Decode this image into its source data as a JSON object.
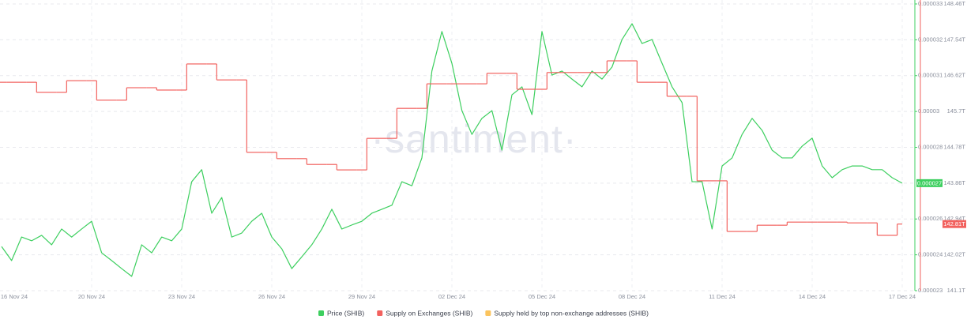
{
  "chart_data": {
    "type": "line",
    "watermark": "·santiment·",
    "categories": [
      "16 Nov 24",
      null,
      null,
      null,
      null,
      null,
      null,
      null,
      null,
      null,
      null,
      null,
      "20 Nov 24",
      null,
      null,
      null,
      null,
      null,
      null,
      null,
      null,
      "23 Nov 24",
      null,
      null,
      null,
      null,
      null,
      null,
      null,
      null,
      "26 Nov 24",
      null,
      null,
      null,
      null,
      null,
      null,
      null,
      null,
      "29 Nov 24",
      null,
      null,
      null,
      null,
      null,
      null,
      null,
      null,
      "02 Dec 24",
      null,
      null,
      null,
      null,
      null,
      null,
      null,
      null,
      "05 Dec 24",
      null,
      null,
      null,
      null,
      null,
      null,
      null,
      null,
      "08 Dec 24",
      null,
      null,
      null,
      null,
      null,
      null,
      null,
      null,
      "11 Dec 24",
      null,
      null,
      null,
      null,
      null,
      null,
      null,
      null,
      "14 Dec 24",
      null,
      null,
      null,
      null,
      null,
      null,
      null,
      null,
      "17 Dec 24"
    ],
    "series": [
      {
        "name": "Price (SHIB)",
        "color": "#3dcf5f",
        "current_label": "0.000027",
        "values": [
          null,
          null,
          null,
          2.454e-05,
          2.405e-05,
          2.487e-05,
          2.474e-05,
          2.493e-05,
          2.46e-05,
          2.515e-05,
          2.487e-05,
          2.515e-05,
          2.542e-05,
          2.432e-05,
          2.405e-05,
          2.377e-05,
          2.35e-05,
          2.46e-05,
          2.432e-05,
          2.487e-05,
          2.474e-05,
          2.515e-05,
          2.68e-05,
          2.722e-05,
          2.57e-05,
          2.625e-05,
          2.487e-05,
          2.501e-05,
          2.542e-05,
          2.57e-05,
          2.487e-05,
          2.446e-05,
          2.377e-05,
          2.418e-05,
          2.46e-05,
          2.515e-05,
          2.584e-05,
          2.515e-05,
          2.529e-05,
          2.542e-05,
          2.57e-05,
          2.584e-05,
          2.598e-05,
          2.68e-05,
          2.666e-05,
          2.763e-05,
          3.066e-05,
          3.204e-05,
          3.093e-05,
          2.928e-05,
          2.845e-05,
          2.901e-05,
          2.928e-05,
          2.79e-05,
          2.983e-05,
          3.011e-05,
          2.914e-05,
          3.204e-05,
          3.052e-05,
          3.066e-05,
          3.038e-05,
          3.011e-05,
          3.066e-05,
          3.038e-05,
          3.08e-05,
          3.176e-05,
          3.231e-05,
          3.162e-05,
          3.176e-05,
          3.093e-05,
          3.011e-05,
          2.956e-05,
          2.68e-05,
          2.68e-05,
          2.515e-05,
          2.735e-05,
          2.763e-05,
          2.845e-05,
          2.901e-05,
          2.859e-05,
          2.79e-05,
          2.763e-05,
          2.763e-05,
          2.804e-05,
          2.832e-05,
          2.735e-05,
          2.694e-05,
          2.722e-05,
          2.735e-05,
          2.735e-05,
          2.722e-05,
          2.722e-05,
          2.694e-05,
          2.675e-05
        ]
      },
      {
        "name": "Supply on Exchanges (SHIB)",
        "color": "#f2615e",
        "axis": "y2",
        "step": true,
        "current_label": "142.81T",
        "values": [
          null,
          null,
          null,
          146.45,
          146.45,
          146.45,
          146.45,
          146.19,
          146.19,
          146.19,
          146.49,
          146.49,
          146.49,
          145.99,
          145.99,
          145.99,
          146.31,
          146.31,
          146.31,
          146.25,
          146.25,
          146.25,
          146.92,
          146.92,
          146.92,
          146.51,
          146.51,
          146.51,
          144.65,
          144.65,
          144.65,
          144.49,
          144.49,
          144.49,
          144.34,
          144.34,
          144.34,
          144.2,
          144.2,
          144.2,
          145.01,
          145.01,
          145.01,
          145.78,
          145.78,
          145.78,
          146.41,
          146.41,
          146.41,
          146.41,
          146.41,
          146.41,
          146.68,
          146.68,
          146.68,
          146.27,
          146.27,
          146.27,
          146.7,
          146.7,
          146.7,
          146.7,
          146.7,
          146.7,
          147,
          147,
          147,
          146.45,
          146.45,
          146.45,
          146.09,
          146.09,
          146.09,
          143.92,
          143.92,
          143.92,
          142.62,
          142.62,
          142.62,
          142.78,
          142.78,
          142.78,
          142.86,
          142.86,
          142.86,
          142.86,
          142.86,
          142.86,
          142.84,
          142.84,
          142.84,
          142.52,
          142.52,
          142.81
        ]
      },
      {
        "name": "Supply held by top non-exchange addresses (SHIB)",
        "color": "#fbc45e",
        "values": [
          null,
          null,
          null,
          null,
          null,
          null,
          null,
          null,
          null,
          null,
          null,
          null,
          null,
          null,
          null,
          null,
          null,
          null,
          null,
          null,
          null,
          null,
          null,
          null,
          null,
          null,
          null,
          null,
          null,
          null,
          null,
          null,
          null,
          null,
          null,
          null,
          null,
          null,
          null,
          null,
          null,
          null,
          null,
          null,
          null,
          null,
          null,
          null,
          null,
          null,
          null,
          null,
          null,
          null,
          null,
          null,
          null,
          null,
          null,
          null,
          null,
          null,
          null,
          null,
          null,
          null,
          null,
          null,
          null,
          null,
          null,
          null,
          null,
          null,
          null,
          null,
          null,
          null,
          null,
          null,
          null,
          null,
          null,
          null,
          null,
          null,
          null,
          null,
          null,
          null,
          null,
          null,
          null,
          null
        ]
      }
    ],
    "ylim": [
      2.3e-05,
      3.3e-05
    ],
    "yticks": [
      3.3e-05,
      {
        "value": 3.175e-05,
        "label": "0.000032"
      },
      {
        "value": 3.05e-05,
        "label": "0.000031"
      },
      {
        "value": 2.925e-05,
        "label": "0.00003"
      },
      2.8e-05,
      {
        "value": 2.55e-05,
        "label": "0.000026"
      },
      {
        "value": 2.425e-05,
        "label": "0.000024"
      },
      2.3e-05
    ],
    "y2lim": [
      141.1,
      148.46
    ],
    "y2ticks": [
      {
        "value": 148.46,
        "label": "148.46T"
      },
      {
        "value": 147.54,
        "label": "147.54T"
      },
      {
        "value": 146.62,
        "label": "146.62T"
      },
      {
        "value": 145.7,
        "label": "145.7T"
      },
      {
        "value": 144.78,
        "label": "144.78T"
      },
      {
        "value": 143.86,
        "label": "143.86T"
      },
      {
        "value": 142.94,
        "label": "142.94T"
      },
      {
        "value": 142.02,
        "label": "142.02T"
      },
      {
        "value": 141.1,
        "label": "141.1T"
      }
    ],
    "grid": true
  }
}
